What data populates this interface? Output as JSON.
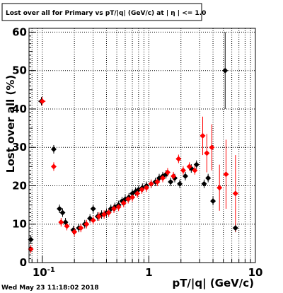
{
  "timestamp": "Wed May 23 11:18:02 2018",
  "chart_data": {
    "type": "scatter",
    "title": "Lost over all for Primary vs pT/|q| (GeV/c) at | η | <= 1.0",
    "xlabel": "pT/|q| (GeV/c)",
    "ylabel": "Lost over all (%)",
    "xscale": "log",
    "xlim": [
      0.075,
      10
    ],
    "ylim": [
      0,
      61
    ],
    "grid": true,
    "x_tick_labels": [
      {
        "value": 0.1,
        "label": "10",
        "exponent": "-1"
      },
      {
        "value": 1,
        "label": "1"
      },
      {
        "value": 10,
        "label": "10"
      }
    ],
    "y_ticks": [
      0,
      10,
      20,
      30,
      40,
      50,
      60
    ],
    "series": [
      {
        "color": "#000000",
        "marker": "diamond",
        "points": [
          {
            "x": 0.078,
            "y": 6.0
          },
          {
            "x": 0.098,
            "y": 42.0,
            "xerr": 0.006
          },
          {
            "x": 0.128,
            "y": 29.5
          },
          {
            "x": 0.145,
            "y": 14.0
          },
          {
            "x": 0.155,
            "y": 13.0
          },
          {
            "x": 0.165,
            "y": 10.5
          },
          {
            "x": 0.195,
            "y": 8.5
          },
          {
            "x": 0.22,
            "y": 9.0
          },
          {
            "x": 0.25,
            "y": 10.0
          },
          {
            "x": 0.28,
            "y": 11.5
          },
          {
            "x": 0.3,
            "y": 14.0
          },
          {
            "x": 0.33,
            "y": 12.0
          },
          {
            "x": 0.36,
            "y": 12.5
          },
          {
            "x": 0.4,
            "y": 13.0
          },
          {
            "x": 0.44,
            "y": 14.0
          },
          {
            "x": 0.48,
            "y": 14.5
          },
          {
            "x": 0.52,
            "y": 15.0
          },
          {
            "x": 0.56,
            "y": 16.0
          },
          {
            "x": 0.6,
            "y": 16.5
          },
          {
            "x": 0.65,
            "y": 17.0
          },
          {
            "x": 0.7,
            "y": 18.0
          },
          {
            "x": 0.75,
            "y": 18.5
          },
          {
            "x": 0.8,
            "y": 19.0
          },
          {
            "x": 0.87,
            "y": 19.5
          },
          {
            "x": 0.95,
            "y": 20.0
          },
          {
            "x": 1.05,
            "y": 20.5
          },
          {
            "x": 1.15,
            "y": 21.0
          },
          {
            "x": 1.25,
            "y": 22.0
          },
          {
            "x": 1.35,
            "y": 22.5
          },
          {
            "x": 1.45,
            "y": 23.0
          },
          {
            "x": 1.6,
            "y": 21.0
          },
          {
            "x": 1.75,
            "y": 22.0
          },
          {
            "x": 1.95,
            "y": 20.5
          },
          {
            "x": 2.2,
            "y": 22.5
          },
          {
            "x": 2.5,
            "y": 24.5
          },
          {
            "x": 2.8,
            "y": 25.5
          },
          {
            "x": 3.3,
            "y": 20.5
          },
          {
            "x": 3.6,
            "y": 22.0
          },
          {
            "x": 4.0,
            "y": 16.0
          },
          {
            "x": 5.2,
            "y": 50.0,
            "yerr": 10
          },
          {
            "x": 6.5,
            "y": 9.0
          }
        ]
      },
      {
        "color": "#ff0000",
        "marker": "diamond",
        "points": [
          {
            "x": 0.078,
            "y": 3.5
          },
          {
            "x": 0.1,
            "y": 42.0,
            "xerr": 0.007
          },
          {
            "x": 0.128,
            "y": 25.0
          },
          {
            "x": 0.15,
            "y": 10.5
          },
          {
            "x": 0.17,
            "y": 9.5
          },
          {
            "x": 0.2,
            "y": 8.0
          },
          {
            "x": 0.23,
            "y": 9.0
          },
          {
            "x": 0.26,
            "y": 10.0
          },
          {
            "x": 0.3,
            "y": 11.0
          },
          {
            "x": 0.34,
            "y": 12.0
          },
          {
            "x": 0.38,
            "y": 12.5
          },
          {
            "x": 0.42,
            "y": 13.0
          },
          {
            "x": 0.47,
            "y": 14.0
          },
          {
            "x": 0.52,
            "y": 14.5
          },
          {
            "x": 0.58,
            "y": 15.5
          },
          {
            "x": 0.64,
            "y": 16.5
          },
          {
            "x": 0.7,
            "y": 17.0
          },
          {
            "x": 0.78,
            "y": 18.0
          },
          {
            "x": 0.86,
            "y": 19.0
          },
          {
            "x": 0.95,
            "y": 19.5
          },
          {
            "x": 1.05,
            "y": 20.5
          },
          {
            "x": 1.2,
            "y": 21.0
          },
          {
            "x": 1.35,
            "y": 22.0
          },
          {
            "x": 1.5,
            "y": 23.5
          },
          {
            "x": 1.7,
            "y": 22.5
          },
          {
            "x": 1.9,
            "y": 27.0
          },
          {
            "x": 2.1,
            "y": 24.0
          },
          {
            "x": 2.4,
            "y": 25.0
          },
          {
            "x": 2.7,
            "y": 24.0
          },
          {
            "x": 3.2,
            "y": 33.0,
            "yerr": 5
          },
          {
            "x": 3.5,
            "y": 28.5,
            "yerr": 5
          },
          {
            "x": 3.9,
            "y": 30.0,
            "yerr": 6
          },
          {
            "x": 4.6,
            "y": 19.5,
            "yerr": 6
          },
          {
            "x": 5.3,
            "y": 23.0,
            "yerr": 9
          },
          {
            "x": 6.5,
            "y": 18.0,
            "yerr": 10
          }
        ]
      }
    ]
  }
}
